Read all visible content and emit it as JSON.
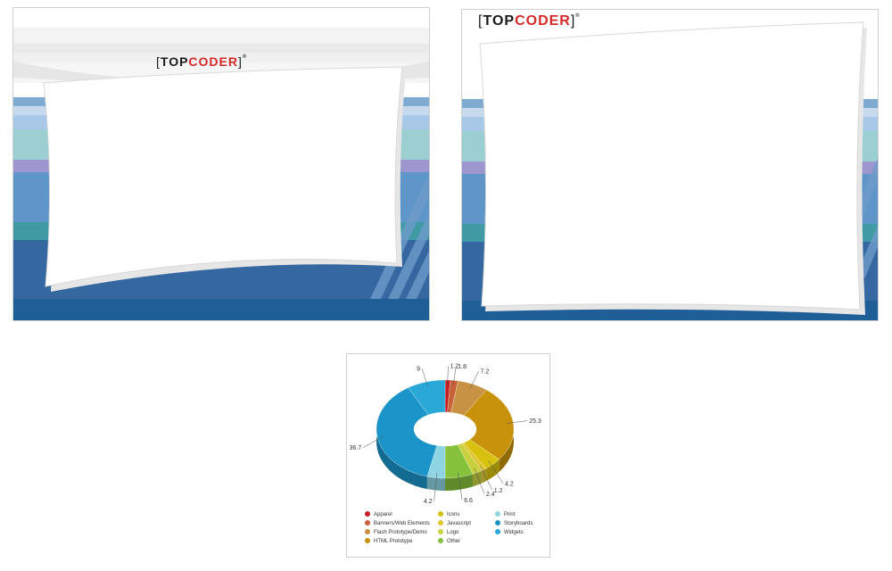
{
  "templates": [
    {
      "logo_left": "[",
      "logo_top": "TOP",
      "logo_coder": "CODER",
      "logo_right": "]",
      "logo_reg": "®"
    },
    {
      "logo_left": "[",
      "logo_top": "TOP",
      "logo_coder": "CODER",
      "logo_right": "]",
      "logo_reg": "®"
    }
  ],
  "colors": {
    "deep_blue": "#2f6496",
    "mid_blue": "#5b93c6",
    "sky_blue": "#9cc3e6",
    "teal": "#84c4c4",
    "lavender": "#9e96cf",
    "navy": "#1d5b8c",
    "gray_top": "#e8e8e8"
  },
  "chart_data": {
    "type": "pie",
    "subtype": "donut",
    "categories": [
      "Apparel",
      "Banners/Web Elements",
      "Flash Prototype/Demo",
      "HTML Prototype",
      "Icons",
      "Javascript",
      "Logo",
      "Other",
      "Print",
      "Storyboards",
      "Widgets"
    ],
    "values": [
      1.2,
      1.8,
      7.2,
      25.3,
      4.2,
      1.2,
      2.4,
      6.6,
      4.2,
      36.7,
      9
    ],
    "colors": [
      "#c41e24",
      "#c8613a",
      "#c89244",
      "#c8930a",
      "#d8c10c",
      "#e0c730",
      "#c8d040",
      "#86c13c",
      "#8fd4e2",
      "#1b95c9",
      "#2aa9d9"
    ],
    "legend": {
      "col1": [
        "Apparel",
        "Banners/Web Elements",
        "Flash Prototype/Demo",
        "HTML Prototype"
      ],
      "col2": [
        "Icons",
        "Javascript",
        "Logo",
        "Other"
      ],
      "col3": [
        "Print",
        "Storyboards",
        "Widgets"
      ]
    },
    "legend_placement": "bottom"
  }
}
